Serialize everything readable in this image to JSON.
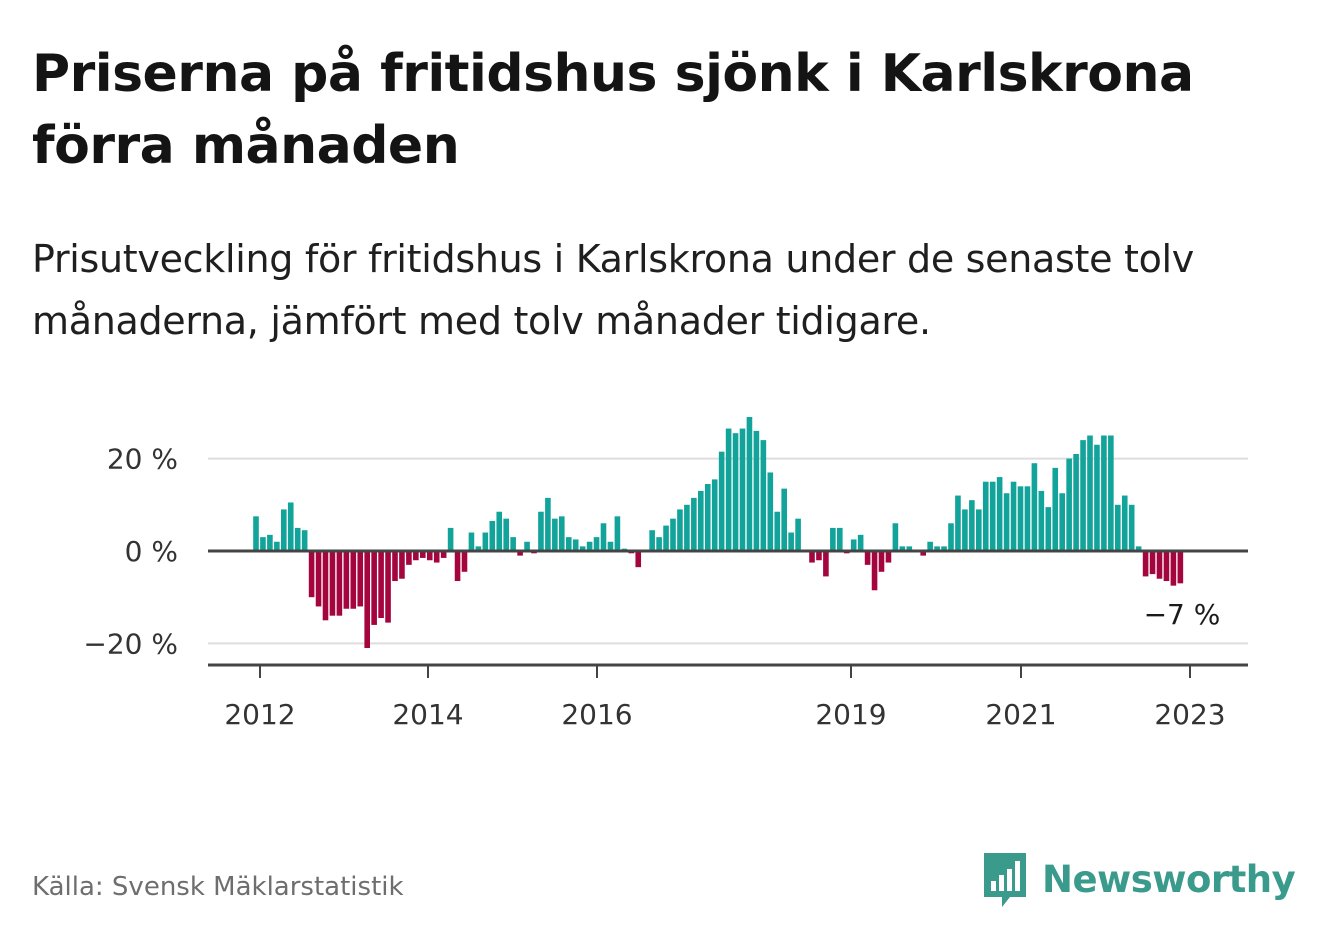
{
  "title": "Priserna på fritidshus sjönk i Karlskrona förra månaden",
  "subtitle": "Prisutveckling för fritidshus i Karlskrona under de senaste tolv månaderna, jämfört med tolv månader tidigare.",
  "source": "Källa: Svensk Mäklarstatistik",
  "brand": {
    "name": "Newsworthy",
    "icon": "newsworthy-logo-icon",
    "color": "#3a9a8c"
  },
  "colors": {
    "positive": "#12a39a",
    "negative": "#a5053f",
    "zero_line": "#444444",
    "grid": "#dddddd"
  },
  "chart_data": {
    "type": "bar",
    "title": "Priserna på fritidshus sjönk i Karlskrona förra månaden",
    "x_start": "2012-01",
    "x_end": "2023-02",
    "xticks": [
      "2012",
      "2014",
      "2016",
      "2019",
      "2021",
      "2023"
    ],
    "yticks": [
      "20 %",
      "0 %",
      "−20 %"
    ],
    "ytick_values": [
      20,
      0,
      -20
    ],
    "ylim": [
      -25,
      30
    ],
    "unit": "%",
    "grid": true,
    "end_label": "−7 %",
    "series": [
      {
        "name": "",
        "values": [
          7.5,
          3,
          3.5,
          2,
          9,
          10.5,
          5,
          4.5,
          -10,
          -12,
          -15,
          -14,
          -14,
          -12.5,
          -12.5,
          -12,
          -21,
          -16,
          -14.5,
          -15.5,
          -6.5,
          -6,
          -3,
          -2,
          -1.5,
          -2,
          -2.5,
          -1.5,
          5,
          -6.5,
          -4.5,
          4,
          1,
          4,
          6.5,
          8.5,
          7,
          3,
          -1,
          2,
          -0.5,
          8.5,
          11.5,
          7,
          7.5,
          3,
          2.5,
          1,
          2,
          3,
          6,
          2,
          7.5,
          0.5,
          -0.5,
          -3.5,
          0,
          4.5,
          3,
          5.5,
          7,
          9,
          10,
          11.5,
          13,
          14.5,
          15.5,
          21.5,
          26.5,
          25.5,
          26.5,
          29,
          26,
          24,
          17,
          8.5,
          13.5,
          4,
          7,
          0,
          -2.5,
          -2,
          -5.5,
          5,
          5,
          -0.5,
          2.5,
          3.5,
          -3,
          -8.5,
          -4.5,
          -2.5,
          6,
          1,
          1,
          0,
          -1,
          2,
          1,
          1,
          6,
          12,
          9,
          11,
          9,
          15,
          15,
          16,
          12.5,
          15,
          14,
          14,
          19,
          13,
          9.5,
          18,
          12.5,
          20,
          21,
          24,
          25,
          23,
          25,
          25,
          10,
          12,
          10,
          1,
          -5.5,
          -5,
          -6,
          -6.5,
          -7.5,
          -7
        ]
      }
    ]
  }
}
